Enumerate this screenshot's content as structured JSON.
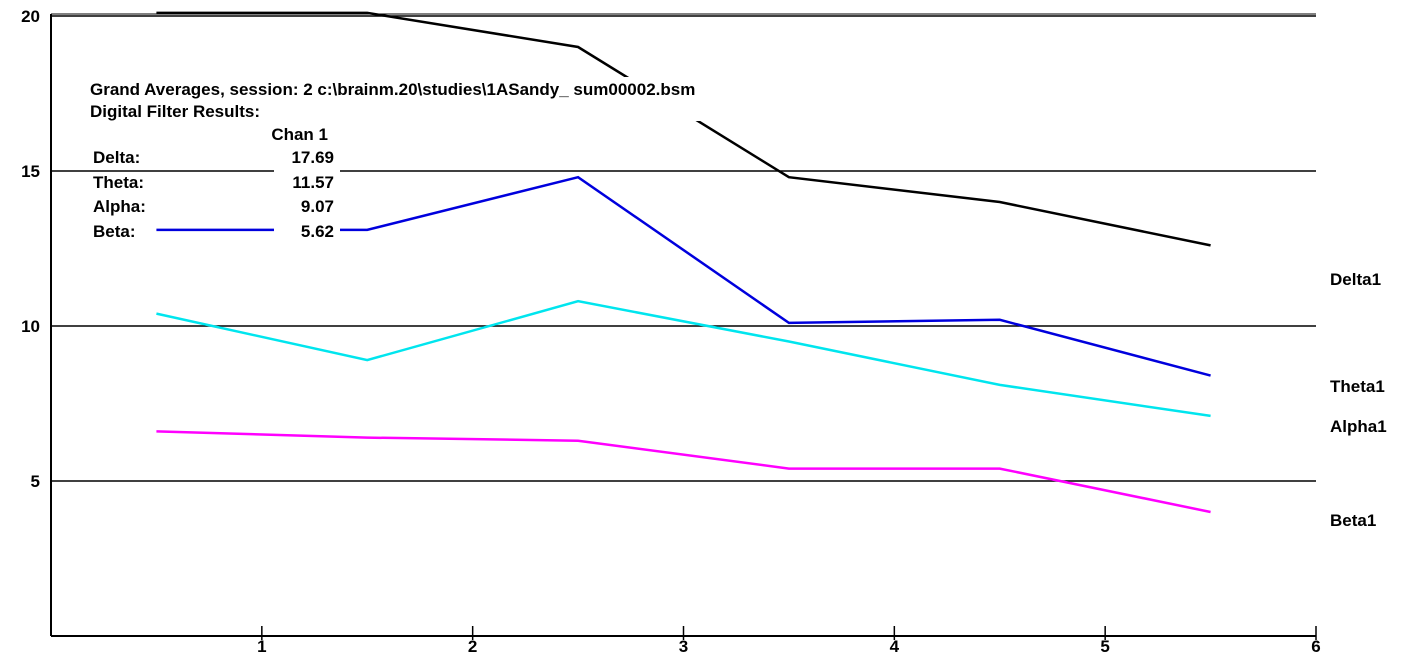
{
  "info": {
    "title_line": "Grand Averages, session: 2 c:\\brainm.20\\studies\\1ASandy_ sum00002.bsm",
    "subtitle": "Digital Filter Results:",
    "chan_header": "Chan 1",
    "rows": [
      {
        "label": "Delta:",
        "value": "17.69"
      },
      {
        "label": "Theta:",
        "value": "11.57"
      },
      {
        "label": "Alpha:",
        "value": "9.07"
      },
      {
        "label": "Beta:",
        "value": "5.62"
      }
    ]
  },
  "chart_data": {
    "type": "line",
    "title": "",
    "xlabel": "",
    "ylabel": "",
    "xlim": [
      0,
      6
    ],
    "ylim": [
      0,
      20
    ],
    "x_ticks": [
      "1",
      "2",
      "3",
      "4",
      "5",
      "6"
    ],
    "y_ticks": [
      "5",
      "10",
      "15",
      "20"
    ],
    "y_gridlines": [
      5,
      10,
      15,
      20
    ],
    "grid": "horizontal",
    "legend": "right",
    "x": [
      0.5,
      1.5,
      2.5,
      3.5,
      4.5,
      5.5
    ],
    "series": [
      {
        "name": "Delta1",
        "color": "#000000",
        "values": [
          20.1,
          20.1,
          19.0,
          14.8,
          14.0,
          12.6
        ]
      },
      {
        "name": "Theta1",
        "color": "#0000dd",
        "values": [
          13.1,
          13.1,
          14.8,
          10.1,
          10.2,
          8.4
        ]
      },
      {
        "name": "Alpha1",
        "color": "#00e5ee",
        "values": [
          10.4,
          8.9,
          10.8,
          9.5,
          8.1,
          7.1
        ]
      },
      {
        "name": "Beta1",
        "color": "#ff00ff",
        "values": [
          6.6,
          6.4,
          6.3,
          5.4,
          5.4,
          4.0
        ]
      }
    ]
  }
}
